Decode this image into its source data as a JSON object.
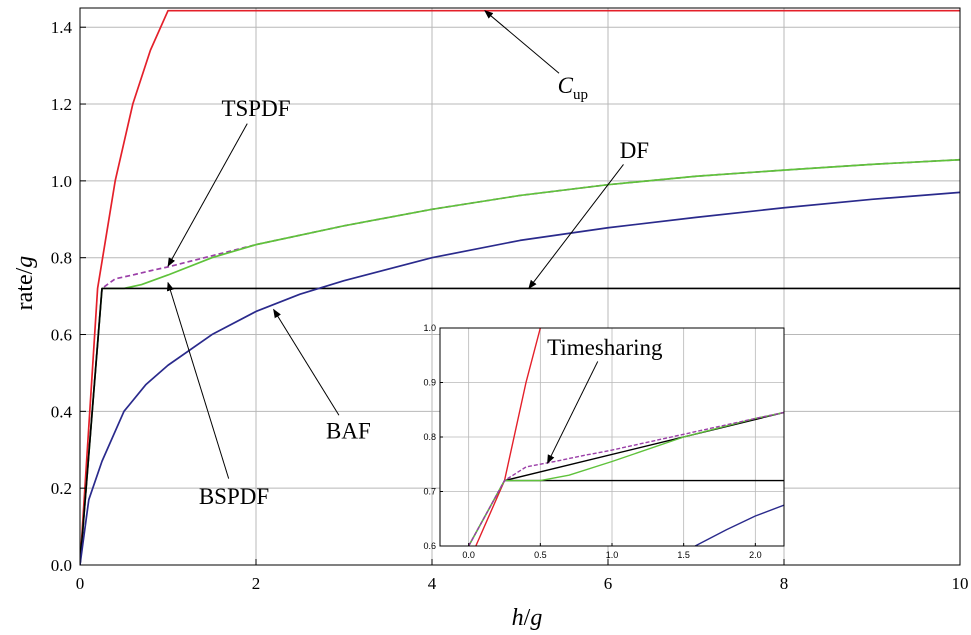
{
  "chart_data": [
    {
      "type": "line",
      "xlabel": {
        "main": "h",
        "sep": "/",
        "var": "g"
      },
      "ylabel": {
        "main": "rate",
        "sep": "/",
        "var": "g"
      },
      "xlim": [
        0,
        10
      ],
      "ylim": [
        0,
        1.45
      ],
      "xticks": [
        0,
        2,
        4,
        6,
        8,
        10
      ],
      "xtick_labels": [
        "0",
        "2",
        "4",
        "6",
        "8",
        "10"
      ],
      "yticks": [
        0.0,
        0.2,
        0.4,
        0.6,
        0.8,
        1.0,
        1.2,
        1.4
      ],
      "ytick_labels": [
        "0.0",
        "0.2",
        "0.4",
        "0.6",
        "0.8",
        "1.0",
        "1.2",
        "1.4"
      ],
      "grid": true,
      "series": [
        {
          "name": "Cup",
          "color": "#e4202a",
          "style": "solid",
          "x": [
            0,
            0.2,
            0.4,
            0.6,
            0.8,
            1.0,
            10.0
          ],
          "y": [
            0.0,
            0.72,
            1.0,
            1.2,
            1.34,
            1.443,
            1.443
          ]
        },
        {
          "name": "TSPDF",
          "color": "#9b3fa8",
          "style": "dashed",
          "x": [
            0,
            0.25,
            0.4,
            0.6,
            0.8,
            1.0,
            1.5,
            2.0,
            3.0,
            4.0,
            5.0,
            6.0,
            7.0,
            8.0,
            9.0,
            10.0
          ],
          "y": [
            0.0,
            0.72,
            0.745,
            0.755,
            0.766,
            0.776,
            0.805,
            0.834,
            0.883,
            0.926,
            0.962,
            0.99,
            1.012,
            1.028,
            1.043,
            1.055
          ]
        },
        {
          "name": "BSPDF",
          "color": "#5fc23b",
          "style": "solid",
          "x": [
            0,
            0.25,
            0.5,
            0.7,
            1.0,
            1.5,
            2.0,
            3.0,
            4.0,
            5.0,
            6.0,
            7.0,
            8.0,
            9.0,
            10.0
          ],
          "y": [
            0.0,
            0.72,
            0.72,
            0.73,
            0.755,
            0.8,
            0.834,
            0.883,
            0.926,
            0.962,
            0.99,
            1.012,
            1.028,
            1.043,
            1.055
          ]
        },
        {
          "name": "BAF",
          "color": "#000000",
          "style": "solid",
          "x": [
            0,
            0.25,
            10.0
          ],
          "y": [
            0.0,
            0.72,
            0.72
          ]
        },
        {
          "name": "DF",
          "color": "#2a2a8c",
          "style": "solid",
          "x": [
            0,
            0.1,
            0.25,
            0.5,
            0.75,
            1.0,
            1.5,
            2.0,
            2.5,
            3.0,
            4.0,
            5.0,
            6.0,
            7.0,
            8.0,
            9.0,
            10.0
          ],
          "y": [
            0.0,
            0.17,
            0.27,
            0.4,
            0.47,
            0.52,
            0.6,
            0.66,
            0.705,
            0.74,
            0.8,
            0.845,
            0.878,
            0.905,
            0.93,
            0.952,
            0.97
          ]
        }
      ],
      "annotations": [
        {
          "label": "C",
          "sub": "up",
          "italic": true,
          "text_at": [
            5.6,
            1.25
          ],
          "arrow_to": [
            4.6,
            1.443
          ]
        },
        {
          "label": "DF",
          "text_at": [
            6.3,
            1.08
          ],
          "arrow_to": [
            5.1,
            0.72
          ]
        },
        {
          "label": "TSPDF",
          "text_at": [
            2.0,
            1.19
          ],
          "arrow_to": [
            1.0,
            0.778
          ]
        },
        {
          "label": "BSPDF",
          "text_at": [
            1.75,
            0.18
          ],
          "arrow_to": [
            1.0,
            0.735
          ]
        },
        {
          "label": "BAF",
          "text_at": [
            3.05,
            0.35
          ],
          "arrow_to": [
            2.2,
            0.665
          ]
        }
      ]
    },
    {
      "type": "line",
      "inset": true,
      "xlim": [
        -0.2,
        2.2
      ],
      "ylim": [
        0.6,
        1.0
      ],
      "xticks": [
        0.0,
        0.5,
        1.0,
        1.5,
        2.0
      ],
      "xtick_labels": [
        "0.0",
        "0.5",
        "1.0",
        "1.5",
        "2.0"
      ],
      "yticks": [
        0.6,
        0.7,
        0.8,
        0.9,
        1.0
      ],
      "ytick_labels": [
        "0.6",
        "0.7",
        "0.8",
        "0.9",
        "1.0"
      ],
      "grid": true,
      "series": [
        {
          "name": "Cup",
          "color": "#e4202a",
          "style": "solid",
          "x": [
            0.05,
            0.25,
            0.4,
            0.5
          ],
          "y": [
            0.6,
            0.72,
            0.9,
            1.0
          ]
        },
        {
          "name": "BAF",
          "color": "#000000",
          "style": "solid",
          "x": [
            0.0,
            0.25,
            2.2
          ],
          "y": [
            0.6,
            0.72,
            0.72
          ]
        },
        {
          "name": "Timesharing",
          "color": "#000000",
          "style": "solid",
          "x": [
            0.25,
            2.2
          ],
          "y": [
            0.72,
            0.845
          ]
        },
        {
          "name": "BSPDF",
          "color": "#5fc23b",
          "style": "solid",
          "x": [
            0.0,
            0.25,
            0.5,
            0.7,
            1.0,
            1.5,
            2.0,
            2.2
          ],
          "y": [
            0.6,
            0.72,
            0.72,
            0.73,
            0.755,
            0.8,
            0.834,
            0.845
          ]
        },
        {
          "name": "TSPDF",
          "color": "#9b3fa8",
          "style": "dashed",
          "x": [
            0.0,
            0.25,
            0.4,
            0.6,
            0.8,
            1.0,
            1.5,
            2.0,
            2.2
          ],
          "y": [
            0.6,
            0.72,
            0.745,
            0.755,
            0.766,
            0.776,
            0.805,
            0.834,
            0.845
          ]
        },
        {
          "name": "DF",
          "color": "#2a2a8c",
          "style": "solid",
          "x": [
            1.58,
            1.8,
            2.0,
            2.2
          ],
          "y": [
            0.6,
            0.63,
            0.655,
            0.675
          ]
        }
      ],
      "annotations": [
        {
          "label": "Timesharing",
          "text_at": [
            0.95,
            0.965
          ],
          "arrow_to": [
            0.55,
            0.752
          ]
        }
      ]
    }
  ]
}
